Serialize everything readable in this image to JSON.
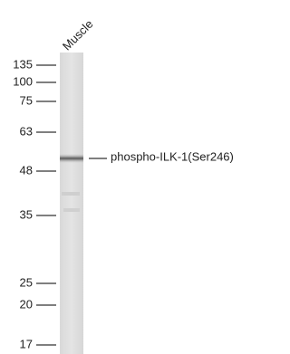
{
  "lane_label": "Muscle",
  "markers": [
    135,
    100,
    75,
    63,
    48,
    35,
    25,
    20,
    17
  ],
  "band_label": "phospho-ILK-1(Ser246)"
}
